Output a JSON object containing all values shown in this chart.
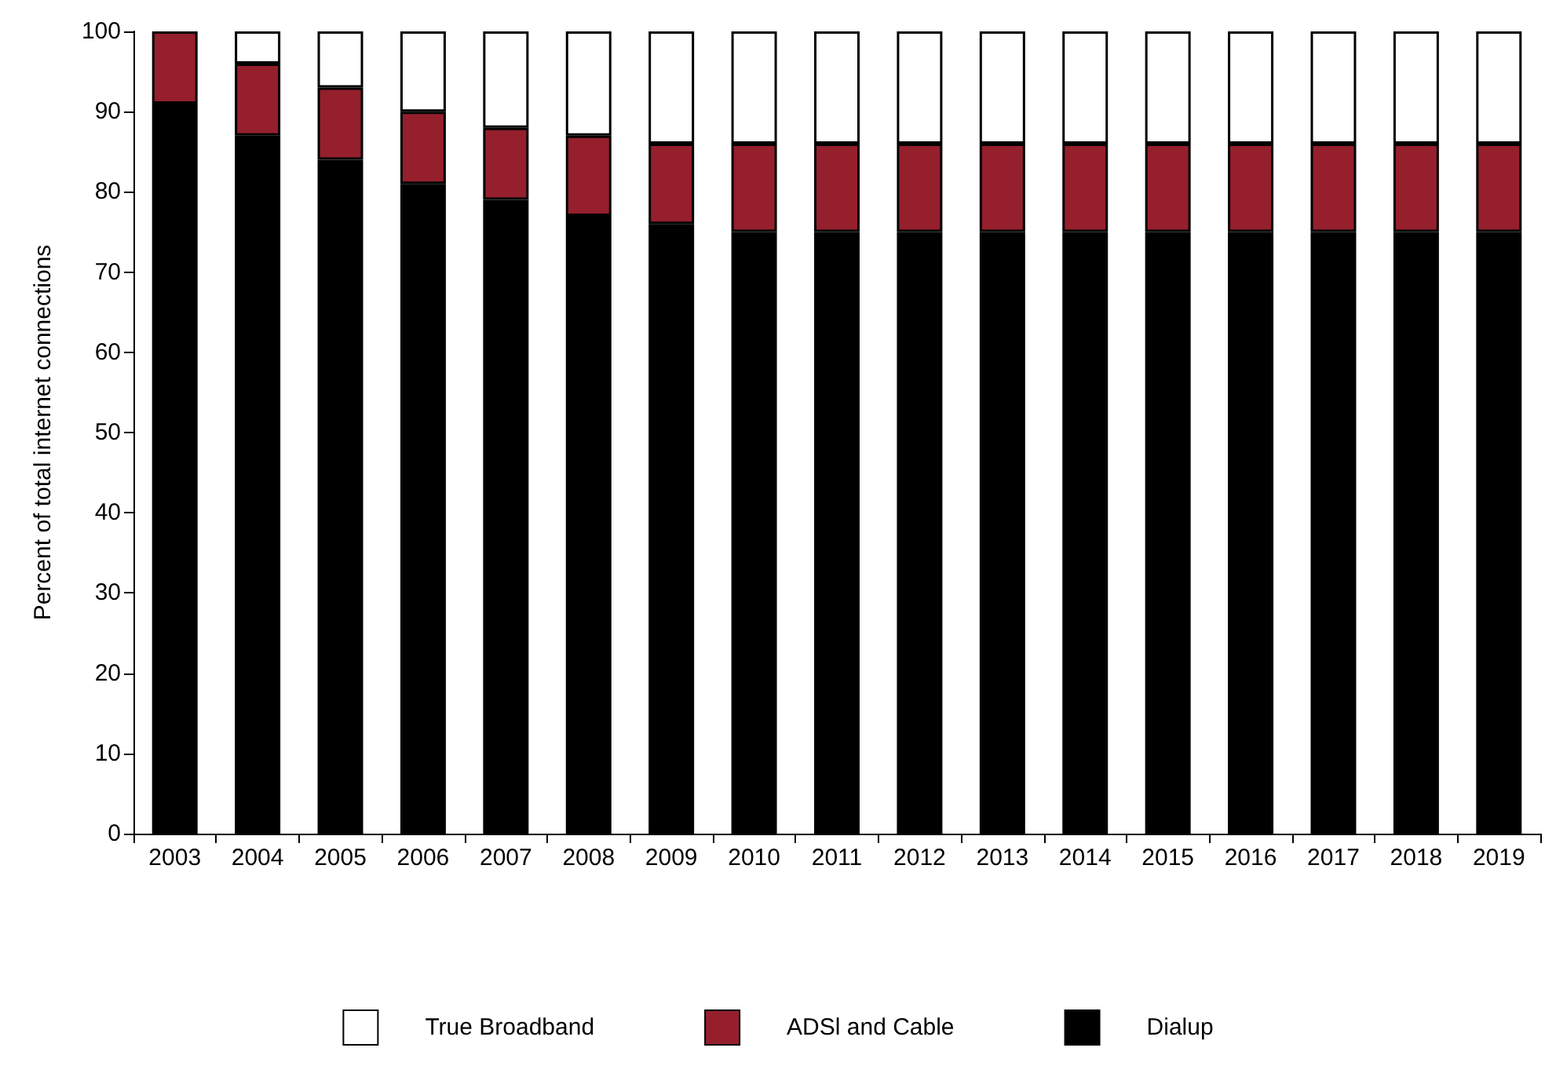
{
  "chart_data": {
    "type": "bar",
    "stacked": true,
    "ylabel": "Percent of total internet connections",
    "categories": [
      "2003",
      "2004",
      "2005",
      "2006",
      "2007",
      "2008",
      "2009",
      "2010",
      "2011",
      "2012",
      "2013",
      "2014",
      "2015",
      "2016",
      "2017",
      "2018",
      "2019"
    ],
    "series": [
      {
        "name": "Dialup",
        "color": "#000000",
        "values": [
          91,
          87,
          84,
          81,
          79,
          77,
          76,
          75,
          75,
          75,
          75,
          75,
          75,
          75,
          75,
          75,
          75
        ]
      },
      {
        "name": "ADSl and Cable",
        "color": "#951f2d",
        "values": [
          9,
          9,
          9,
          9,
          9,
          10,
          10,
          11,
          11,
          11,
          11,
          11,
          11,
          11,
          11,
          11,
          11
        ]
      },
      {
        "name": "True Broadband",
        "color": "#ffffff",
        "values": [
          0,
          4,
          7,
          10,
          12,
          13,
          14,
          14,
          14,
          14,
          14,
          14,
          14,
          14,
          14,
          14,
          14
        ]
      }
    ],
    "ylim": [
      0,
      100
    ],
    "yticks": [
      0,
      10,
      20,
      30,
      40,
      50,
      60,
      70,
      80,
      90,
      100
    ],
    "grid": false,
    "legend": "bottom"
  }
}
